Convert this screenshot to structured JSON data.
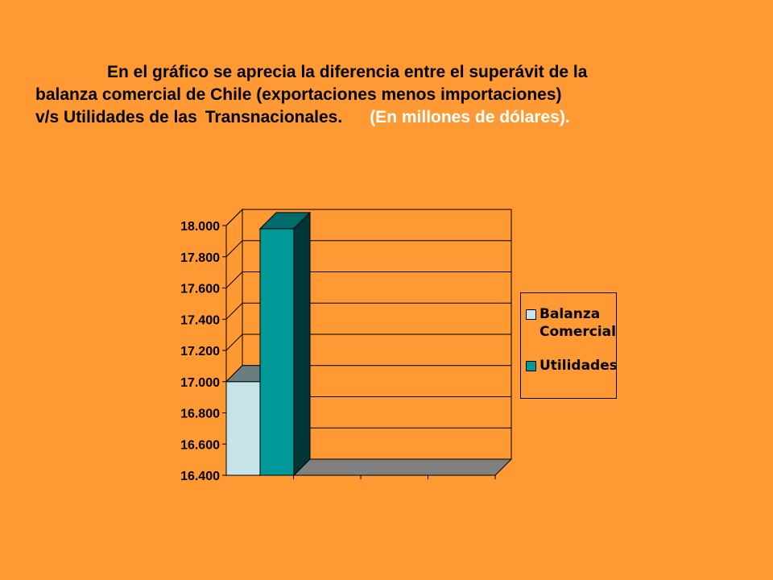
{
  "description": {
    "line1": "En el gráfico se aprecia la diferencia entre el superávit de la",
    "line2": "balanza comercial de Chile (exportaciones menos importaciones)",
    "line3_a": "v/s Utilidades de las",
    "line3_b": "Transnacionales.",
    "line3_unit": "(En millones de dólares)."
  },
  "colors": {
    "background": "#FF9933",
    "balanza": "#C5E3E8",
    "utilidades": "#009999"
  },
  "chart_data": {
    "type": "bar",
    "three_d": true,
    "categories": [
      ""
    ],
    "series": [
      {
        "name": "Balanza Comercial",
        "values": [
          17000
        ]
      },
      {
        "name": "Utilidades",
        "values": [
          17980
        ]
      }
    ],
    "ylim": [
      16400,
      18000
    ],
    "yticks": [
      {
        "value": 16400,
        "label": "16.400"
      },
      {
        "value": 16600,
        "label": "16.600"
      },
      {
        "value": 16800,
        "label": "16.800"
      },
      {
        "value": 17000,
        "label": "17.000"
      },
      {
        "value": 17200,
        "label": "17.200"
      },
      {
        "value": 17400,
        "label": "17.400"
      },
      {
        "value": 17600,
        "label": "17.600"
      },
      {
        "value": 17800,
        "label": "17.800"
      },
      {
        "value": 18000,
        "label": "18.000"
      }
    ],
    "grid": true,
    "legend_position": "right",
    "legend": {
      "balanza_line1": "Balanza",
      "balanza_line2": "Comercial",
      "utilidades": "Utilidades"
    }
  }
}
